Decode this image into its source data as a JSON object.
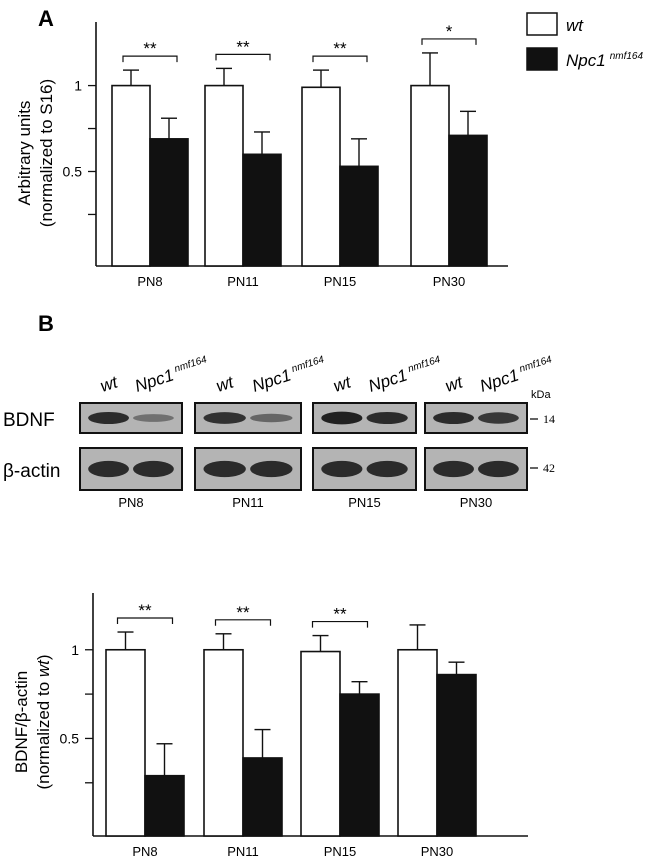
{
  "panel_a": {
    "label": "A"
  },
  "panel_b": {
    "label": "B"
  },
  "legend": {
    "wt": "wt",
    "npc1": "Npc1",
    "npc1_sup": "nmf164"
  },
  "colors": {
    "wt": "#ffffff",
    "npc1": "#111111",
    "axis": "#111111",
    "blot_bg": "#b4b4b4",
    "band": "#1a1a1a"
  },
  "blot": {
    "lanes": [
      {
        "label": "PN8",
        "wt": "wt",
        "mut": "Npc1",
        "mut_sup": "nmf164",
        "bdnf_wt": 0.85,
        "bdnf_mut": 0.25,
        "actin_wt": 0.85,
        "actin_mut": 0.85
      },
      {
        "label": "PN11",
        "wt": "wt",
        "mut": "Npc1",
        "mut_sup": "nmf164",
        "bdnf_wt": 0.8,
        "bdnf_mut": 0.35,
        "actin_wt": 0.85,
        "actin_mut": 0.85
      },
      {
        "label": "PN15",
        "wt": "wt",
        "mut": "Npc1",
        "mut_sup": "nmf164",
        "bdnf_wt": 0.95,
        "bdnf_mut": 0.85,
        "actin_wt": 0.85,
        "actin_mut": 0.85
      },
      {
        "label": "PN30",
        "wt": "wt",
        "mut": "Npc1",
        "mut_sup": "nmf164",
        "bdnf_wt": 0.85,
        "bdnf_mut": 0.75,
        "actin_wt": 0.85,
        "actin_mut": 0.85
      }
    ],
    "rows": [
      "BDNF",
      "β-actin"
    ],
    "kda_label": "kDa",
    "kda": [
      "14",
      "42"
    ]
  },
  "chart_data": [
    {
      "type": "bar",
      "panel": "A",
      "categories": [
        "PN8",
        "PN11",
        "PN15",
        "PN30"
      ],
      "series": [
        {
          "name": "wt",
          "values": [
            1.0,
            1.0,
            0.99,
            1.0
          ],
          "errors": [
            0.09,
            0.1,
            0.1,
            0.19
          ]
        },
        {
          "name": "Npc1 nmf164",
          "values": [
            0.69,
            0.6,
            0.53,
            0.71
          ],
          "errors": [
            0.12,
            0.13,
            0.16,
            0.14
          ]
        }
      ],
      "yticks": [
        "0.5",
        "1"
      ],
      "ytick_values": [
        0.5,
        1.0
      ],
      "ylim": [
        -0.05,
        1.37
      ],
      "ylabel": [
        "Arbitrary units",
        "(normalized to S16)"
      ],
      "significance": [
        "**",
        "**",
        "**",
        "*"
      ]
    },
    {
      "type": "bar",
      "panel": "B",
      "categories": [
        "PN8",
        "PN11",
        "PN15",
        "PN30"
      ],
      "series": [
        {
          "name": "wt",
          "values": [
            1.0,
            1.0,
            0.99,
            1.0
          ],
          "errors": [
            0.1,
            0.09,
            0.09,
            0.14
          ]
        },
        {
          "name": "Npc1 nmf164",
          "values": [
            0.29,
            0.39,
            0.75,
            0.86
          ],
          "errors": [
            0.18,
            0.16,
            0.07,
            0.07
          ]
        }
      ],
      "yticks": [
        "0.5",
        "1"
      ],
      "ytick_values": [
        0.5,
        1.0
      ],
      "ylim": [
        -0.05,
        1.32
      ],
      "ylabel": [
        "BDNF/β-actin",
        "(normalized to ",
        "wt",
        ")"
      ],
      "significance": [
        "**",
        "**",
        "**",
        ""
      ]
    }
  ]
}
